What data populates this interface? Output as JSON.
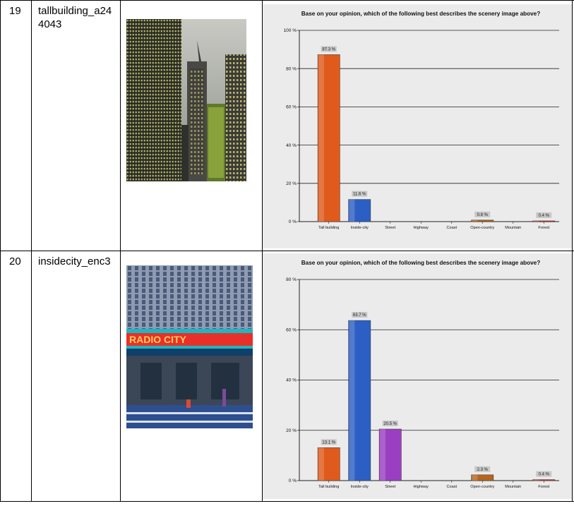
{
  "rows": [
    {
      "number": "19",
      "name": "tallbuilding_a244043",
      "image_icon": "skyscraper-photo",
      "chart_data": {
        "type": "bar",
        "title": "Base on your opinion, which of the following best describes the scenery image above?",
        "categories": [
          "Tall building",
          "Inside-city",
          "Street",
          "Highway",
          "Coast",
          "Open-country",
          "Mountain",
          "Forest"
        ],
        "values": [
          87.3,
          11.6,
          0,
          0,
          0,
          0.8,
          0,
          0.4
        ],
        "labels": [
          "87.3 %",
          "11.6 %",
          "",
          "",
          "",
          "0.8 %",
          "",
          "0.4 %"
        ],
        "colors": [
          "#e05a1c",
          "#2c5fc4",
          "#9a3fc2",
          "#888888",
          "#888888",
          "#b5651d",
          "#888888",
          "#c0392b"
        ],
        "ylim": [
          0,
          100
        ],
        "yticks": [
          0,
          20,
          40,
          60,
          80,
          100
        ],
        "ytick_labels": [
          "0 %",
          "20 %",
          "40 %",
          "60 %",
          "80 %",
          "100 %"
        ],
        "grid": true,
        "xlabel": "",
        "ylabel": ""
      }
    },
    {
      "number": "20",
      "name": "insidecity_enc3",
      "image_icon": "radio-city-photo",
      "chart_data": {
        "type": "bar",
        "title": "Base on your opinion, which of the following best describes the scenery image above?",
        "categories": [
          "Tall building",
          "Inside-city",
          "Street",
          "Highway",
          "Coast",
          "Open-country",
          "Mountain",
          "Forest"
        ],
        "values": [
          13.1,
          63.7,
          20.5,
          0,
          0,
          2.3,
          0,
          0.4
        ],
        "labels": [
          "13.1 %",
          "63.7 %",
          "20.5 %",
          "",
          "",
          "2.3 %",
          "",
          "0.4 %"
        ],
        "colors": [
          "#e05a1c",
          "#2c5fc4",
          "#9a3fc2",
          "#888888",
          "#888888",
          "#b5651d",
          "#888888",
          "#c0392b"
        ],
        "ylim": [
          0,
          80
        ],
        "yticks": [
          0,
          20,
          40,
          60,
          80
        ],
        "ytick_labels": [
          "0 %",
          "20 %",
          "40 %",
          "60 %",
          "80 %"
        ],
        "grid": true,
        "xlabel": "",
        "ylabel": ""
      }
    }
  ]
}
